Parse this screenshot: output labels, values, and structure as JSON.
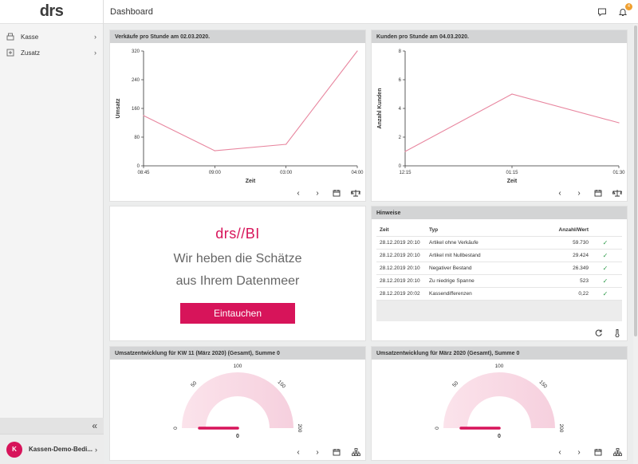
{
  "app": {
    "logo": "drs",
    "page_title": "Dashboard"
  },
  "sidebar": {
    "items": [
      {
        "label": "Kasse",
        "icon": "register-icon"
      },
      {
        "label": "Zusatz",
        "icon": "plus-box-icon"
      }
    ],
    "collapse_glyph": "«",
    "user": {
      "initial": "K",
      "name": "Kassen-Demo-Bedi..."
    }
  },
  "header_icons": {
    "notifications_count": "4"
  },
  "cards": {
    "sales_chart": {
      "title": "Verkäufe pro Stunde am 02.03.2020.",
      "xlabel": "Zeit",
      "ylabel": "Umsatz",
      "yticks": [
        "0",
        "80",
        "160",
        "240",
        "320"
      ],
      "xticks": [
        "08:45",
        "09:00",
        "03:00",
        "04:00"
      ]
    },
    "customers_chart": {
      "title": "Kunden pro Stunde am 04.03.2020.",
      "xlabel": "Zeit",
      "ylabel": "Anzahl Kunden",
      "yticks": [
        "0",
        "2",
        "4",
        "6",
        "8"
      ],
      "xticks": [
        "12:15",
        "01:15",
        "01:30"
      ]
    },
    "promo": {
      "logo_left": "drs",
      "logo_sep": "//",
      "logo_right": "BI",
      "line1": "Wir heben die Schätze",
      "line2": "aus Ihrem Datenmeer",
      "button": "Eintauchen"
    },
    "hints": {
      "title": "Hinweise",
      "columns": [
        "Zeit",
        "Typ",
        "Anzahl/Wert"
      ],
      "rows": [
        {
          "zeit": "28.12.2019 20:10",
          "typ": "Artikel ohne Verkäufe",
          "wert": "59.730"
        },
        {
          "zeit": "28.12.2019 20:10",
          "typ": "Artikel mit Nullbestand",
          "wert": "29.424"
        },
        {
          "zeit": "28.12.2019 20:10",
          "typ": "Negativer Bestand",
          "wert": "26.349"
        },
        {
          "zeit": "28.12.2019 20:10",
          "typ": "Zu niedrige Spanne",
          "wert": "523"
        },
        {
          "zeit": "28.12.2019 20:02",
          "typ": "Kassendifferenzen",
          "wert": "0,22"
        }
      ]
    },
    "gauge1": {
      "title": "Umsatzentwicklung für KW 11 (März 2020) (Gesamt), Summe 0",
      "labels": [
        "0",
        "50",
        "100",
        "150",
        "200"
      ],
      "value_label": "0"
    },
    "gauge2": {
      "title": "Umsatzentwicklung für März 2020 (Gesamt), Summe 0",
      "labels": [
        "0",
        "50",
        "100",
        "150",
        "200"
      ],
      "value_label": "0"
    }
  },
  "chart_data": [
    {
      "type": "line",
      "title": "Verkäufe pro Stunde am 02.03.2020.",
      "xlabel": "Zeit",
      "ylabel": "Umsatz",
      "x": [
        "08:45",
        "09:00",
        "03:00",
        "04:00"
      ],
      "series": [
        {
          "values": [
            140,
            42,
            60,
            320
          ]
        }
      ],
      "ylim": [
        0,
        320
      ],
      "color": "#e8869f"
    },
    {
      "type": "line",
      "title": "Kunden pro Stunde am 04.03.2020.",
      "xlabel": "Zeit",
      "ylabel": "Anzahl Kunden",
      "x": [
        "12:15",
        "01:15",
        "01:30"
      ],
      "series": [
        {
          "values": [
            1,
            5,
            3
          ]
        }
      ],
      "ylim": [
        0,
        8
      ],
      "color": "#e8869f"
    },
    {
      "type": "gauge",
      "title": "Umsatzentwicklung für KW 11 (März 2020) (Gesamt), Summe 0",
      "value": 0,
      "range": [
        0,
        200
      ]
    },
    {
      "type": "gauge",
      "title": "Umsatzentwicklung für März 2020 (Gesamt), Summe 0",
      "value": 0,
      "range": [
        0,
        200
      ]
    }
  ],
  "colors": {
    "accent": "#d7145a",
    "line": "#e8869f",
    "gauge_fill": "#f9dce6"
  }
}
